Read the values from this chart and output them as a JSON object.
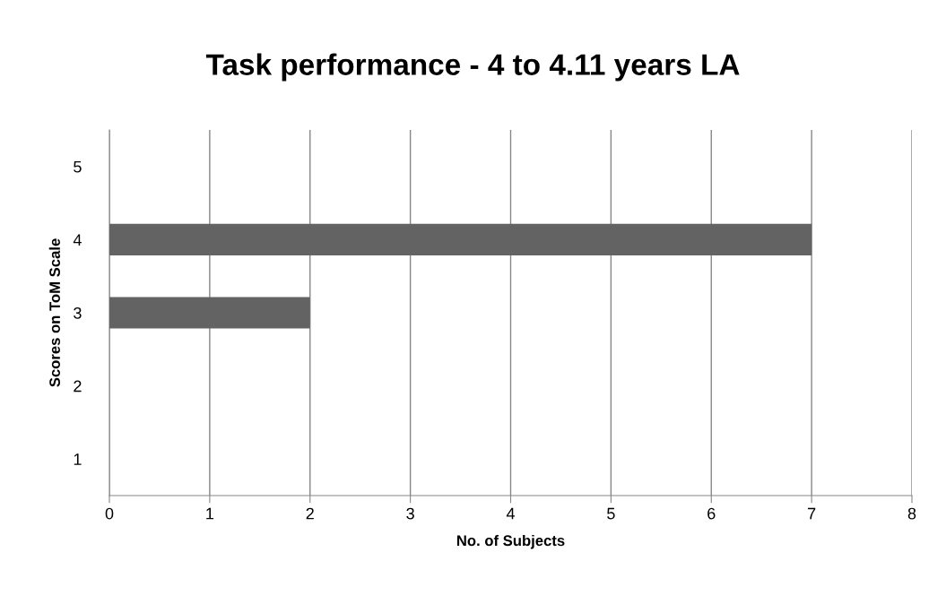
{
  "chart_data": {
    "type": "bar",
    "orientation": "horizontal",
    "title": "Task performance - 4 to 4.11 years LA",
    "xlabel": "No. of Subjects",
    "ylabel": "Scores on ToM Scale",
    "categories": [
      "5",
      "4",
      "3",
      "2",
      "1"
    ],
    "values": [
      0,
      7,
      2,
      0,
      0
    ],
    "color": "#636363",
    "xlim": [
      0,
      8
    ],
    "xticks": [
      0,
      1,
      2,
      3,
      4,
      5,
      6,
      7,
      8
    ],
    "grid": "x",
    "legend": false
  }
}
